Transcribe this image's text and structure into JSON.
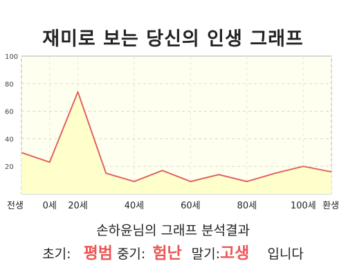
{
  "title": "재미로 보는 당신의 인생 그래프",
  "summary": "손하윤님의 그래프 분석결과",
  "verdict": {
    "early_label": "초기:",
    "early_value": "평범",
    "mid_label": "중기:",
    "mid_value": "험난",
    "late_label": "말기:",
    "late_value": "고생",
    "ending": "입니다"
  },
  "colors": {
    "line": "#e06060",
    "fill": "#ffffcc",
    "plot_bg": "#fffff0",
    "highlight": "#ee5555"
  },
  "chart_data": {
    "type": "area",
    "title": "재미로 보는 당신의 인생 그래프",
    "x_categories": [
      "전생",
      "0세",
      "20세",
      "40세",
      "60세",
      "80세",
      "100세",
      "환생"
    ],
    "points": [
      {
        "x": "전생",
        "y": 30
      },
      {
        "x": "0세",
        "y": 23
      },
      {
        "x": "20세",
        "y": 74
      },
      {
        "x": "30세",
        "y": 15
      },
      {
        "x": "40세",
        "y": 9
      },
      {
        "x": "50세",
        "y": 17
      },
      {
        "x": "60세",
        "y": 9
      },
      {
        "x": "70세",
        "y": 14
      },
      {
        "x": "80세",
        "y": 9
      },
      {
        "x": "90세",
        "y": 15
      },
      {
        "x": "100세",
        "y": 20
      },
      {
        "x": "환생",
        "y": 16
      }
    ],
    "y_ticks": [
      20,
      40,
      60,
      80,
      100
    ],
    "ylim": [
      0,
      100
    ],
    "grid": true,
    "legend": "none"
  }
}
